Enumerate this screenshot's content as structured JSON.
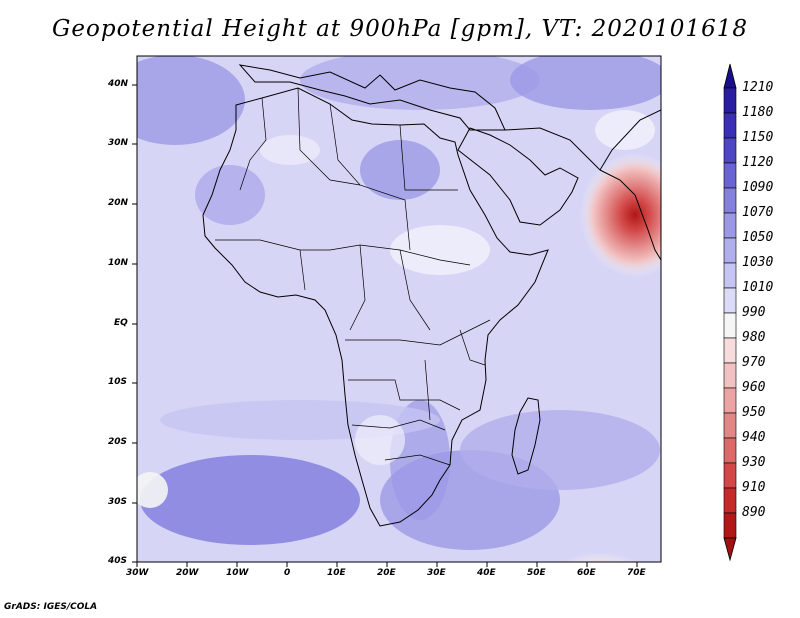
{
  "title": "Geopotential Height at 900hPa [gpm], VT: 2020101618",
  "credit": "GrADS: IGES/COLA",
  "map": {
    "lon_labels": [
      "30W",
      "20W",
      "10W",
      "0",
      "10E",
      "20E",
      "30E",
      "40E",
      "50E",
      "60E",
      "70E"
    ],
    "lat_labels": [
      "40N",
      "30N",
      "20N",
      "10N",
      "EQ",
      "10S",
      "20S",
      "30S",
      "40S"
    ],
    "lon_range": [
      -30,
      75
    ],
    "lat_range": [
      -40,
      45
    ]
  },
  "colorbar": {
    "levels": [
      "1210",
      "1180",
      "1150",
      "1120",
      "1090",
      "1070",
      "1050",
      "1030",
      "1010",
      "990",
      "980",
      "970",
      "960",
      "950",
      "940",
      "930",
      "910",
      "890"
    ],
    "colors": [
      "#2a1da0",
      "#3a2fb4",
      "#4f46c4",
      "#6a63d3",
      "#8580de",
      "#9c98e6",
      "#b1aeec",
      "#c6c4f2",
      "#dcdbf7",
      "#f5f5f5",
      "#f6dcdc",
      "#f2c2c2",
      "#eaa4a4",
      "#e38686",
      "#dc6868",
      "#d24848",
      "#c42a2a",
      "#b01717"
    ]
  }
}
